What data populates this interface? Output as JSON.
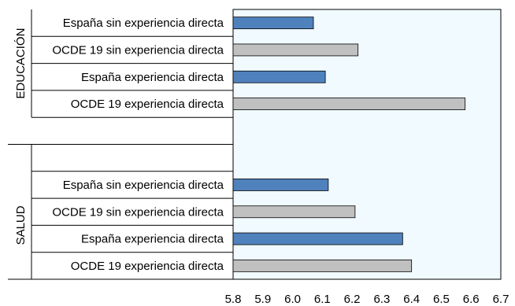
{
  "chart_data": {
    "type": "bar",
    "orientation": "horizontal",
    "title": "",
    "xlabel": "",
    "ylabel": "",
    "xlim": [
      5.8,
      6.7
    ],
    "xticks": [
      "5.8",
      "5.9",
      "6.0",
      "6.1",
      "6.2",
      "6.3",
      "6.4",
      "6.5",
      "6.6",
      "6.7"
    ],
    "grid": false,
    "plot_background": "#F0FAFF",
    "colors": {
      "espana": "#4F81BD",
      "ocde": "#C0C0C0"
    },
    "groups": [
      {
        "label": "EDUCACIÓN",
        "bars": [
          {
            "label": "España sin experiencia directa",
            "value": 6.07,
            "series": "espana"
          },
          {
            "label": "OCDE 19 sin experiencia directa",
            "value": 6.22,
            "series": "ocde"
          },
          {
            "label": "España experiencia directa",
            "value": 6.11,
            "series": "espana"
          },
          {
            "label": "OCDE 19 experiencia directa",
            "value": 6.58,
            "series": "ocde"
          }
        ]
      },
      {
        "label": "SALUD",
        "bars": [
          {
            "label": "España sin experiencia directa",
            "value": 6.12,
            "series": "espana"
          },
          {
            "label": "OCDE 19 sin experiencia directa",
            "value": 6.21,
            "series": "ocde"
          },
          {
            "label": "España experiencia directa",
            "value": 6.37,
            "series": "espana"
          },
          {
            "label": "OCDE 19 experiencia directa",
            "value": 6.4,
            "series": "ocde"
          }
        ]
      }
    ]
  }
}
